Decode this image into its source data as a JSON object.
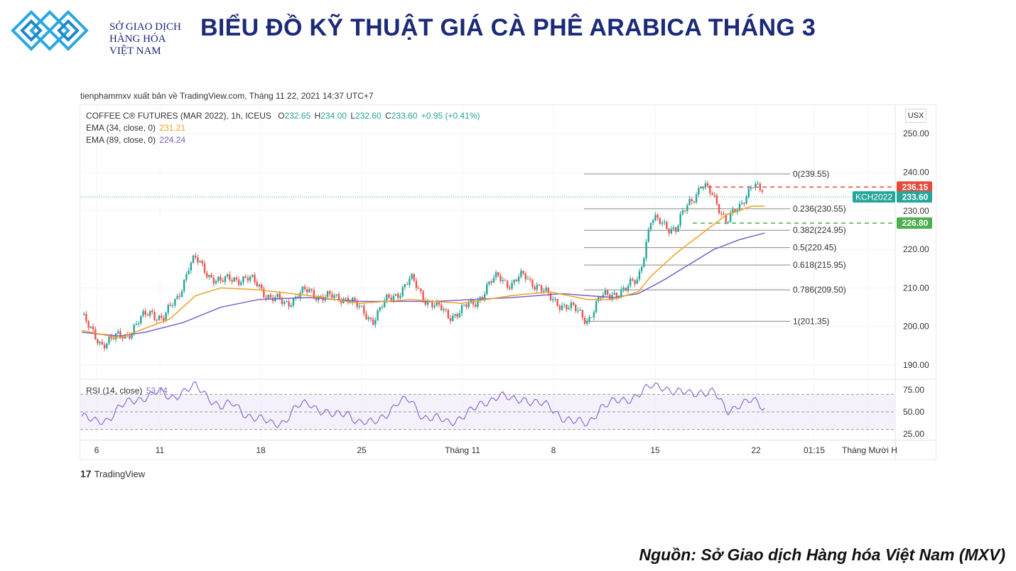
{
  "header": {
    "org_line1": "SỞ GIAO DỊCH",
    "org_line2": "HÀNG HÓA",
    "org_line3": "VIỆT NAM",
    "title": "BIỂU ĐỒ KỸ THUẬT GIÁ CÀ PHÊ ARABICA THÁNG 3"
  },
  "publisher": "tienphammxv xuất bản về TradingView.com, Tháng 11 22, 2021 14:37 UTC+7",
  "legend": {
    "symbol": "COFFEE C® FUTURES (MAR 2022), 1h, ICEUS",
    "o_label": "O",
    "o_value": "232.65",
    "h_label": "H",
    "h_value": "234.00",
    "l_label": "L",
    "l_value": "232.60",
    "c_label": "C",
    "c_value": "233.60",
    "change": "+0.95 (+0.41%)",
    "ema34_label": "EMA (34, close, 0)",
    "ema34_value": "231.21",
    "ema89_label": "EMA (89, close, 0)",
    "ema89_value": "224.24",
    "rsi_label": "RSI (14, close)",
    "rsi_value": "53.74"
  },
  "currency": "USX",
  "tradingview": "TradingView",
  "source": "Nguồn: Sở Giao dịch Hàng hóa Việt Nam (MXV)",
  "colors": {
    "up": "#26a69a",
    "down": "#ef5350",
    "ema34": "#f0a020",
    "ema89": "#7b61c9",
    "rsi": "#8a6fd0",
    "resistance": "#e84a3a",
    "support": "#4caf50"
  },
  "chart_data": {
    "type": "candlestick",
    "price_axis": {
      "ticks": [
        190,
        200,
        210,
        220,
        230,
        240,
        250
      ],
      "labels": [
        "190.00",
        "200.00",
        "210.00",
        "220.00",
        "230.00",
        "240.00",
        "250.00"
      ]
    },
    "rsi_axis": {
      "ticks": [
        25,
        50,
        75
      ],
      "labels": [
        "25.00",
        "50.00",
        "75.00"
      ],
      "bands": [
        30,
        50,
        70
      ]
    },
    "x_labels": [
      "6",
      "11",
      "18",
      "25",
      "Tháng 11",
      "8",
      "15",
      "22",
      "01:15",
      "Tháng Mười H"
    ],
    "fibonacci": [
      {
        "ratio": "0",
        "value": 239.55,
        "label": "0(239.55)"
      },
      {
        "ratio": "0.236",
        "value": 230.55,
        "label": "0.236(230.55)"
      },
      {
        "ratio": "0.382",
        "value": 224.95,
        "label": "0.382(224.95)"
      },
      {
        "ratio": "0.5",
        "value": 220.45,
        "label": "0.5(220.45)"
      },
      {
        "ratio": "0.618",
        "value": 215.95,
        "label": "0.618(215.95)"
      },
      {
        "ratio": "0.786",
        "value": 209.5,
        "label": "0.786(209.50)"
      },
      {
        "ratio": "1",
        "value": 201.35,
        "label": "1(201.35)"
      }
    ],
    "resistance": {
      "value": 236.15,
      "label": "236.15"
    },
    "support": {
      "value": 226.8,
      "label": "226.80"
    },
    "last_price": {
      "symbol": "KCH2022",
      "value": 233.6,
      "label": "233.60"
    },
    "close_path": [
      [
        0,
        203
      ],
      [
        0.6,
        199
      ],
      [
        1.5,
        196
      ],
      [
        2.5,
        196.5
      ],
      [
        3.5,
        198
      ],
      [
        4.5,
        201
      ],
      [
        5.5,
        204
      ],
      [
        6.5,
        202
      ],
      [
        7.5,
        207
      ],
      [
        8.5,
        216
      ],
      [
        9,
        217
      ],
      [
        10,
        214
      ],
      [
        11,
        211
      ],
      [
        12,
        213
      ],
      [
        13,
        212
      ],
      [
        14,
        211
      ],
      [
        15,
        207
      ],
      [
        16,
        206
      ],
      [
        17,
        208
      ],
      [
        18,
        209
      ],
      [
        19,
        208
      ],
      [
        20,
        207
      ],
      [
        21,
        208
      ],
      [
        22,
        204
      ],
      [
        23,
        202
      ],
      [
        24,
        206
      ],
      [
        25,
        209
      ],
      [
        26,
        212
      ],
      [
        27,
        208
      ],
      [
        28,
        205
      ],
      [
        29,
        203
      ],
      [
        30,
        204
      ],
      [
        31,
        206
      ],
      [
        32,
        210
      ],
      [
        33,
        213
      ],
      [
        34,
        211
      ],
      [
        35,
        213
      ],
      [
        36,
        211
      ],
      [
        37,
        207
      ],
      [
        38,
        206
      ],
      [
        39,
        204
      ],
      [
        40,
        202
      ],
      [
        41,
        207
      ],
      [
        42,
        209
      ],
      [
        43,
        209
      ],
      [
        44,
        213
      ],
      [
        45,
        227
      ],
      [
        46,
        227
      ],
      [
        47,
        225
      ],
      [
        48,
        232
      ],
      [
        49,
        237
      ],
      [
        50,
        233
      ],
      [
        51,
        228
      ],
      [
        52,
        230
      ],
      [
        53,
        238
      ],
      [
        54,
        233.6
      ]
    ],
    "ema34": [
      [
        0,
        199
      ],
      [
        3,
        197
      ],
      [
        5,
        199.5
      ],
      [
        7,
        202
      ],
      [
        9,
        208
      ],
      [
        11,
        210
      ],
      [
        14,
        209.5
      ],
      [
        18,
        208
      ],
      [
        22,
        206
      ],
      [
        26,
        207
      ],
      [
        30,
        206
      ],
      [
        34,
        208
      ],
      [
        37,
        209
      ],
      [
        40,
        207
      ],
      [
        42,
        207
      ],
      [
        44,
        209
      ],
      [
        45,
        213
      ],
      [
        47,
        219
      ],
      [
        49,
        224
      ],
      [
        51,
        229
      ],
      [
        53,
        231.2
      ],
      [
        54,
        231.21
      ]
    ],
    "ema89": [
      [
        0,
        198.5
      ],
      [
        3,
        197.5
      ],
      [
        5,
        198.5
      ],
      [
        8,
        201
      ],
      [
        11,
        205
      ],
      [
        14,
        207
      ],
      [
        18,
        207.5
      ],
      [
        22,
        206.5
      ],
      [
        28,
        206.5
      ],
      [
        34,
        207.5
      ],
      [
        38,
        208.5
      ],
      [
        42,
        207.5
      ],
      [
        44,
        208.5
      ],
      [
        46,
        212
      ],
      [
        48,
        216
      ],
      [
        50,
        220
      ],
      [
        52,
        222.5
      ],
      [
        54,
        224.24
      ]
    ],
    "rsi_path": [
      [
        0,
        45
      ],
      [
        1,
        38
      ],
      [
        2,
        42
      ],
      [
        3,
        55
      ],
      [
        4,
        62
      ],
      [
        5,
        68
      ],
      [
        6,
        72
      ],
      [
        7,
        66
      ],
      [
        8,
        74
      ],
      [
        9,
        78
      ],
      [
        10,
        68
      ],
      [
        11,
        56
      ],
      [
        12,
        58
      ],
      [
        13,
        48
      ],
      [
        14,
        42
      ],
      [
        15,
        36
      ],
      [
        16,
        40
      ],
      [
        17,
        55
      ],
      [
        18,
        60
      ],
      [
        19,
        52
      ],
      [
        20,
        44
      ],
      [
        21,
        50
      ],
      [
        22,
        38
      ],
      [
        23,
        36
      ],
      [
        24,
        48
      ],
      [
        25,
        60
      ],
      [
        26,
        63
      ],
      [
        27,
        45
      ],
      [
        28,
        42
      ],
      [
        29,
        38
      ],
      [
        30,
        45
      ],
      [
        31,
        52
      ],
      [
        32,
        62
      ],
      [
        33,
        70
      ],
      [
        34,
        62
      ],
      [
        35,
        66
      ],
      [
        36,
        60
      ],
      [
        37,
        55
      ],
      [
        38,
        45
      ],
      [
        39,
        38
      ],
      [
        40,
        36
      ],
      [
        41,
        56
      ],
      [
        42,
        60
      ],
      [
        43,
        64
      ],
      [
        44,
        70
      ],
      [
        45,
        78
      ],
      [
        46,
        80
      ],
      [
        47,
        72
      ],
      [
        48,
        70
      ],
      [
        49,
        74
      ],
      [
        50,
        72
      ],
      [
        51,
        50
      ],
      [
        52,
        60
      ],
      [
        53,
        62
      ],
      [
        54,
        53.74
      ]
    ]
  }
}
